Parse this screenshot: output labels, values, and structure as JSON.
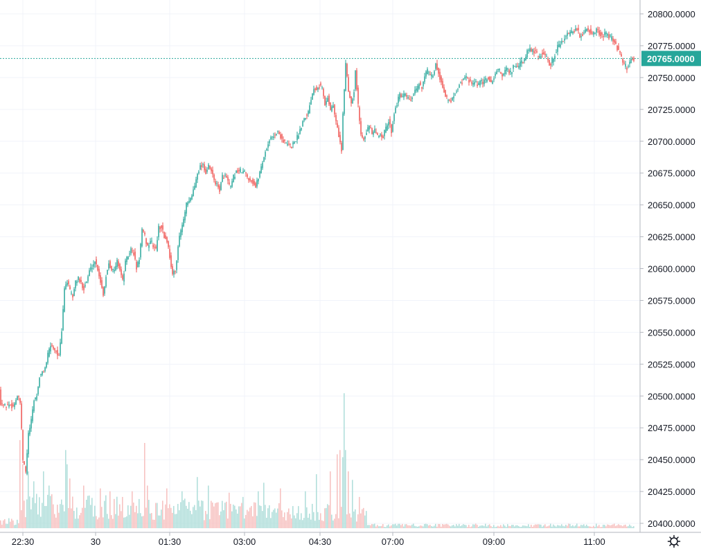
{
  "chart_data": {
    "type": "candlestick",
    "symbol_last_price": "20765.0000",
    "last_price": 20765,
    "ylim": [
      20397,
      20808
    ],
    "y_ticks": [
      "20800.0000",
      "20775.0000",
      "20750.0000",
      "20725.0000",
      "20700.0000",
      "20675.0000",
      "20650.0000",
      "20625.0000",
      "20600.0000",
      "20575.0000",
      "20550.0000",
      "20525.0000",
      "20500.0000",
      "20475.0000",
      "20450.0000",
      "20425.0000",
      "20400.0000"
    ],
    "x_ticks": [
      "22:30",
      "30",
      "01:30",
      "03:00",
      "04:30",
      "07:00",
      "09:00",
      "11:00"
    ],
    "grid": true,
    "colors": {
      "up": "#26a69a",
      "down": "#ef5350",
      "up_volume": "#b2dfdb",
      "down_volume": "#f7c3c2",
      "grid": "#f0f3fa",
      "last_price": "#26a69a",
      "axis_text": "#131722"
    },
    "price_path": [
      [
        0,
        20505
      ],
      [
        2,
        20495
      ],
      [
        8,
        20492
      ],
      [
        14,
        20493
      ],
      [
        20,
        20492
      ],
      [
        26,
        20500
      ],
      [
        30,
        20495
      ],
      [
        34,
        20450
      ],
      [
        38,
        20440
      ],
      [
        42,
        20470
      ],
      [
        46,
        20480
      ],
      [
        50,
        20497
      ],
      [
        54,
        20500
      ],
      [
        58,
        20515
      ],
      [
        62,
        20518
      ],
      [
        66,
        20522
      ],
      [
        70,
        20532
      ],
      [
        74,
        20540
      ],
      [
        78,
        20538
      ],
      [
        82,
        20535
      ],
      [
        86,
        20531
      ],
      [
        90,
        20550
      ],
      [
        94,
        20585
      ],
      [
        98,
        20590
      ],
      [
        102,
        20582
      ],
      [
        106,
        20578
      ],
      [
        110,
        20590
      ],
      [
        114,
        20592
      ],
      [
        118,
        20588
      ],
      [
        122,
        20585
      ],
      [
        126,
        20590
      ],
      [
        130,
        20598
      ],
      [
        134,
        20602
      ],
      [
        138,
        20606
      ],
      [
        142,
        20600
      ],
      [
        146,
        20590
      ],
      [
        150,
        20580
      ],
      [
        154,
        20594
      ],
      [
        158,
        20605
      ],
      [
        162,
        20600
      ],
      [
        166,
        20598
      ],
      [
        170,
        20606
      ],
      [
        174,
        20600
      ],
      [
        178,
        20590
      ],
      [
        182,
        20605
      ],
      [
        186,
        20610
      ],
      [
        190,
        20615
      ],
      [
        194,
        20612
      ],
      [
        198,
        20600
      ],
      [
        202,
        20608
      ],
      [
        206,
        20630
      ],
      [
        210,
        20625
      ],
      [
        214,
        20617
      ],
      [
        218,
        20622
      ],
      [
        222,
        20618
      ],
      [
        226,
        20615
      ],
      [
        230,
        20632
      ],
      [
        234,
        20633
      ],
      [
        238,
        20625
      ],
      [
        242,
        20622
      ],
      [
        246,
        20610
      ],
      [
        250,
        20595
      ],
      [
        254,
        20598
      ],
      [
        258,
        20618
      ],
      [
        262,
        20630
      ],
      [
        266,
        20638
      ],
      [
        270,
        20650
      ],
      [
        274,
        20652
      ],
      [
        278,
        20658
      ],
      [
        282,
        20665
      ],
      [
        286,
        20676
      ],
      [
        290,
        20680
      ],
      [
        294,
        20682
      ],
      [
        298,
        20675
      ],
      [
        302,
        20680
      ],
      [
        306,
        20676
      ],
      [
        310,
        20670
      ],
      [
        314,
        20665
      ],
      [
        318,
        20662
      ],
      [
        322,
        20672
      ],
      [
        326,
        20673
      ],
      [
        330,
        20668
      ],
      [
        334,
        20663
      ],
      [
        338,
        20672
      ],
      [
        342,
        20676
      ],
      [
        346,
        20677
      ],
      [
        350,
        20676
      ],
      [
        354,
        20676
      ],
      [
        358,
        20672
      ],
      [
        362,
        20670
      ],
      [
        366,
        20668
      ],
      [
        370,
        20664
      ],
      [
        374,
        20672
      ],
      [
        378,
        20680
      ],
      [
        382,
        20688
      ],
      [
        386,
        20695
      ],
      [
        390,
        20701
      ],
      [
        394,
        20703
      ],
      [
        398,
        20706
      ],
      [
        402,
        20707
      ],
      [
        406,
        20704
      ],
      [
        410,
        20700
      ],
      [
        414,
        20698
      ],
      [
        418,
        20697
      ],
      [
        422,
        20696
      ],
      [
        426,
        20700
      ],
      [
        430,
        20703
      ],
      [
        434,
        20709
      ],
      [
        438,
        20716
      ],
      [
        442,
        20720
      ],
      [
        446,
        20723
      ],
      [
        450,
        20734
      ],
      [
        454,
        20742
      ],
      [
        458,
        20742
      ],
      [
        462,
        20744
      ],
      [
        466,
        20742
      ],
      [
        470,
        20728
      ],
      [
        474,
        20735
      ],
      [
        478,
        20725
      ],
      [
        482,
        20728
      ],
      [
        486,
        20715
      ],
      [
        490,
        20705
      ],
      [
        494,
        20692
      ],
      [
        496,
        20720
      ],
      [
        500,
        20762
      ],
      [
        504,
        20740
      ],
      [
        508,
        20730
      ],
      [
        512,
        20740
      ],
      [
        514,
        20755
      ],
      [
        518,
        20728
      ],
      [
        522,
        20705
      ],
      [
        526,
        20703
      ],
      [
        530,
        20708
      ],
      [
        534,
        20712
      ],
      [
        538,
        20706
      ],
      [
        542,
        20708
      ],
      [
        546,
        20704
      ],
      [
        550,
        20706
      ],
      [
        554,
        20704
      ],
      [
        558,
        20710
      ],
      [
        562,
        20716
      ],
      [
        566,
        20708
      ],
      [
        570,
        20722
      ],
      [
        574,
        20730
      ],
      [
        578,
        20736
      ],
      [
        582,
        20735
      ],
      [
        586,
        20736
      ],
      [
        590,
        20733
      ],
      [
        594,
        20732
      ],
      [
        598,
        20737
      ],
      [
        602,
        20740
      ],
      [
        606,
        20745
      ],
      [
        610,
        20743
      ],
      [
        614,
        20752
      ],
      [
        618,
        20755
      ],
      [
        622,
        20750
      ],
      [
        626,
        20752
      ],
      [
        630,
        20760
      ],
      [
        634,
        20754
      ],
      [
        638,
        20746
      ],
      [
        642,
        20740
      ],
      [
        646,
        20733
      ],
      [
        650,
        20731
      ],
      [
        654,
        20734
      ],
      [
        658,
        20738
      ],
      [
        662,
        20742
      ],
      [
        666,
        20746
      ],
      [
        670,
        20748
      ],
      [
        674,
        20750
      ],
      [
        678,
        20748
      ],
      [
        682,
        20744
      ],
      [
        686,
        20746
      ],
      [
        690,
        20744
      ],
      [
        694,
        20746
      ],
      [
        698,
        20746
      ],
      [
        702,
        20748
      ],
      [
        706,
        20750
      ],
      [
        710,
        20745
      ],
      [
        714,
        20750
      ],
      [
        718,
        20756
      ],
      [
        722,
        20755
      ],
      [
        726,
        20752
      ],
      [
        730,
        20756
      ],
      [
        734,
        20756
      ],
      [
        738,
        20754
      ],
      [
        742,
        20758
      ],
      [
        746,
        20758
      ],
      [
        750,
        20760
      ],
      [
        754,
        20762
      ],
      [
        758,
        20763
      ],
      [
        762,
        20770
      ],
      [
        766,
        20772
      ],
      [
        770,
        20771
      ],
      [
        774,
        20770
      ],
      [
        778,
        20766
      ],
      [
        782,
        20768
      ],
      [
        786,
        20769
      ],
      [
        790,
        20766
      ],
      [
        794,
        20760
      ],
      [
        798,
        20763
      ],
      [
        802,
        20768
      ],
      [
        806,
        20775
      ],
      [
        810,
        20776
      ],
      [
        814,
        20779
      ],
      [
        818,
        20784
      ],
      [
        822,
        20783
      ],
      [
        826,
        20786
      ],
      [
        830,
        20787
      ],
      [
        834,
        20788
      ],
      [
        838,
        20783
      ],
      [
        842,
        20784
      ],
      [
        846,
        20787
      ],
      [
        850,
        20788
      ],
      [
        854,
        20786
      ],
      [
        858,
        20784
      ],
      [
        862,
        20787
      ],
      [
        866,
        20785
      ],
      [
        870,
        20783
      ],
      [
        874,
        20784
      ],
      [
        878,
        20783
      ],
      [
        882,
        20781
      ],
      [
        886,
        20780
      ],
      [
        890,
        20776
      ],
      [
        894,
        20771
      ],
      [
        898,
        20765
      ],
      [
        902,
        20760
      ],
      [
        906,
        20758
      ],
      [
        910,
        20762
      ],
      [
        914,
        20765
      ]
    ],
    "volume_spikes": [
      [
        28,
        0.62
      ],
      [
        32,
        0.45
      ],
      [
        40,
        0.4
      ],
      [
        48,
        0.33
      ],
      [
        62,
        0.4
      ],
      [
        70,
        0.3
      ],
      [
        94,
        0.55
      ],
      [
        96,
        0.45
      ],
      [
        100,
        0.35
      ],
      [
        120,
        0.3
      ],
      [
        144,
        0.28
      ],
      [
        158,
        0.26
      ],
      [
        176,
        0.22
      ],
      [
        190,
        0.26
      ],
      [
        208,
        0.6
      ],
      [
        212,
        0.3
      ],
      [
        240,
        0.28
      ],
      [
        262,
        0.26
      ],
      [
        284,
        0.36
      ],
      [
        300,
        0.3
      ],
      [
        330,
        0.25
      ],
      [
        350,
        0.22
      ],
      [
        372,
        0.26
      ],
      [
        380,
        0.32
      ],
      [
        404,
        0.28
      ],
      [
        440,
        0.26
      ],
      [
        456,
        0.38
      ],
      [
        476,
        0.4
      ],
      [
        486,
        0.52
      ],
      [
        490,
        0.55
      ],
      [
        494,
        0.5
      ],
      [
        496,
        0.95
      ],
      [
        498,
        0.55
      ],
      [
        502,
        0.4
      ],
      [
        508,
        0.34
      ],
      [
        518,
        0.22
      ]
    ]
  },
  "settings": {
    "icon": "gear-icon"
  }
}
